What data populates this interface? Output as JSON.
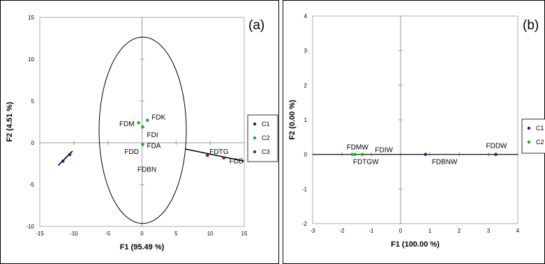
{
  "chart_data": [
    {
      "type": "scatter",
      "panel_label": "(a)",
      "xlabel": "F1 (95.49 %)",
      "ylabel": "F2 (4.51 %)",
      "xlim": [
        -15,
        15
      ],
      "ylim": [
        -10,
        15
      ],
      "xticks": [
        -15,
        -10,
        -5,
        0,
        5,
        10,
        15
      ],
      "yticks": [
        -10,
        -5,
        0,
        5,
        10,
        15
      ],
      "grid": false,
      "legend_placement": "right",
      "series": [
        {
          "name": "C1",
          "color": "#1f1fa8",
          "points": [
            {
              "label": "FDD",
              "x": -10.6,
              "y": -1.4
            },
            {
              "label": "FDBN",
              "x": -11.6,
              "y": -2.2
            }
          ]
        },
        {
          "name": "C2",
          "color": "#22aa22",
          "points": [
            {
              "label": "FDM",
              "x": -0.5,
              "y": 2.4
            },
            {
              "label": "FDK",
              "x": 0.8,
              "y": 2.7
            },
            {
              "label": "FDI",
              "x": 0.1,
              "y": 1.9
            },
            {
              "label": "FDA",
              "x": 0.1,
              "y": -0.2
            }
          ]
        },
        {
          "name": "C3",
          "color": "#8b1a1a",
          "points": [
            {
              "label": "FDTG",
              "x": 9.6,
              "y": -1.5
            },
            {
              "label": "FDB",
              "x": 12.0,
              "y": -1.8
            }
          ]
        }
      ]
    },
    {
      "type": "scatter",
      "panel_label": "(b)",
      "xlabel": "F1 (100.00 %)",
      "ylabel": "F2 (0.00 %)",
      "xlim": [
        -3,
        4
      ],
      "ylim": [
        -2,
        4
      ],
      "xticks": [
        -3,
        -2,
        -1,
        0,
        1,
        2,
        3,
        4
      ],
      "yticks": [
        -2,
        -1,
        0,
        1,
        2,
        3,
        4
      ],
      "grid": false,
      "legend_placement": "right",
      "series": [
        {
          "name": "C1",
          "color": "#1f1fa8",
          "points": [
            {
              "label": "FDBNW",
              "x": 0.85,
              "y": 0
            },
            {
              "label": "FDDW",
              "x": 3.25,
              "y": 0
            }
          ]
        },
        {
          "name": "C2",
          "color": "#22aa22",
          "points": [
            {
              "label": "FDMW",
              "x": -1.65,
              "y": 0
            },
            {
              "label": "FDTGW",
              "x": -1.55,
              "y": 0
            },
            {
              "label": "FDIW",
              "x": -1.3,
              "y": 0
            }
          ]
        }
      ]
    }
  ]
}
